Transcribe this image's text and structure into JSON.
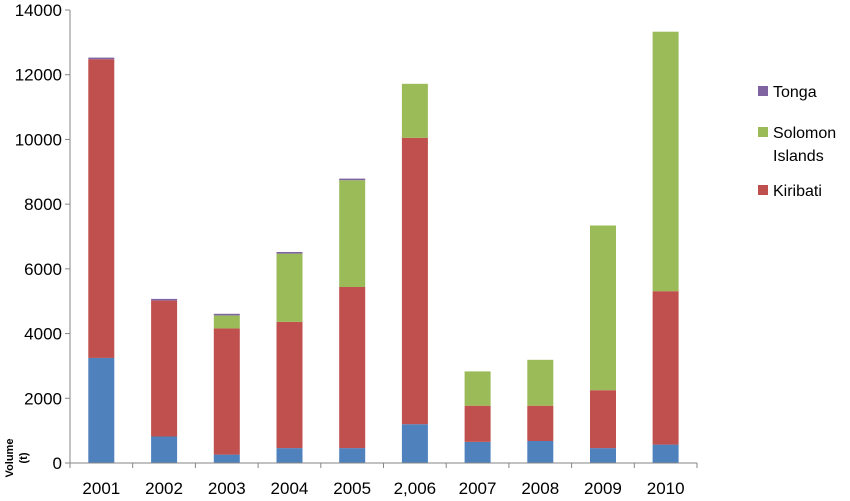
{
  "chart_data": {
    "type": "bar",
    "stacked": true,
    "title": "",
    "xlabel": "",
    "ylabel": "Volume (t)",
    "ylim": [
      0,
      14000
    ],
    "yticks": [
      0,
      2000,
      4000,
      6000,
      8000,
      10000,
      12000,
      14000
    ],
    "grid": false,
    "legend_position": "right",
    "categories": [
      "2001",
      "2002",
      "2003",
      "2004",
      "2005",
      "2,006",
      "2007",
      "2008",
      "2009",
      "2010"
    ],
    "series": [
      {
        "color": "#4F81BD",
        "values": [
          3250,
          820,
          260,
          460,
          460,
          1200,
          650,
          680,
          460,
          570
        ]
      },
      {
        "name": "Kiribati",
        "color": "#C0504D",
        "values": [
          9230,
          4200,
          3900,
          3900,
          4980,
          8850,
          1120,
          1090,
          1790,
          4740
        ]
      },
      {
        "name": "Solomon Islands",
        "color": "#9BBB59",
        "values": [
          0,
          0,
          400,
          2110,
          3300,
          1670,
          1060,
          1420,
          5090,
          8020
        ]
      },
      {
        "name": "Tonga",
        "color": "#8064A2",
        "values": [
          50,
          50,
          50,
          50,
          50,
          0,
          0,
          0,
          0,
          0
        ]
      }
    ],
    "legend": [
      "Tonga",
      "Solomon Islands",
      "Kiribati"
    ]
  }
}
